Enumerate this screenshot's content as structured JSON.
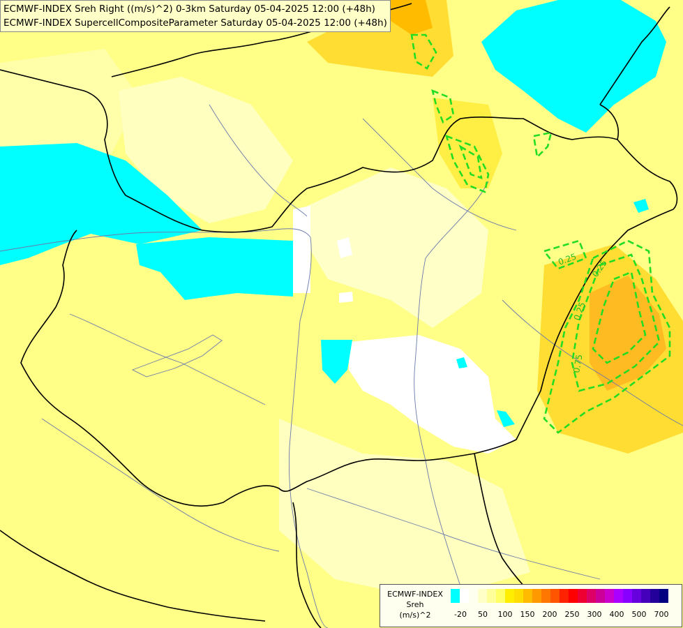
{
  "header": {
    "line1": "ECMWF-INDEX Sreh Right ((m/s)^2) 0-3km Saturday 05-04-2025 12:00 (+48h)",
    "line2": "ECMWF-INDEX SupercellCompositeParameter Saturday 05-04-2025 12:00 (+48h)"
  },
  "legend": {
    "line1": "ECMWF-INDEX",
    "line2": "Sreh",
    "line3": "(m/s)^2",
    "colors": [
      "#00ffff",
      "#ffffff",
      "#fffff0",
      "#ffffc8",
      "#ffff99",
      "#ffff66",
      "#ffee00",
      "#ffdd00",
      "#ffbb00",
      "#ff9900",
      "#ff7700",
      "#ff5500",
      "#ff2200",
      "#ff0000",
      "#ee0033",
      "#dd0066",
      "#cc0099",
      "#cc00cc",
      "#aa00ff",
      "#8800ff",
      "#6600dd",
      "#4400bb",
      "#220099",
      "#000080"
    ],
    "ticks": [
      "-20",
      "50",
      "100",
      "150",
      "200",
      "250",
      "300",
      "400",
      "500",
      "700"
    ]
  },
  "contours": {
    "labels": [
      "0.25",
      "0.25",
      "0.25",
      "0.75"
    ],
    "color": "#22dd22"
  },
  "colors": {
    "cyan": "#00ffff",
    "yellow": "#ffff66",
    "lightyellow": "#ffffaa",
    "orange": "#ffbb00"
  }
}
